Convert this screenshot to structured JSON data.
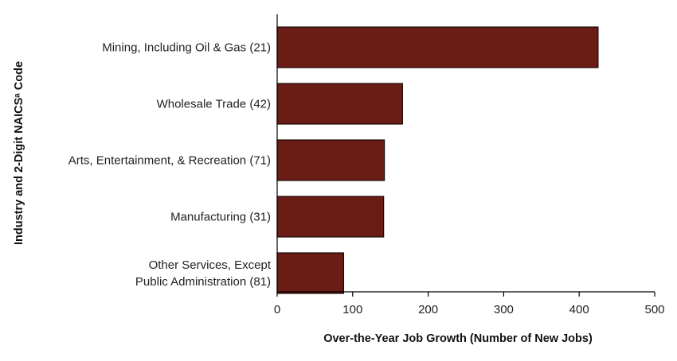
{
  "chart_data": {
    "type": "bar",
    "orientation": "horizontal",
    "categories": [
      [
        "Mining, Including Oil & Gas (21)"
      ],
      [
        "Wholesale Trade (42)"
      ],
      [
        "Arts, Entertainment, & Recreation (71)"
      ],
      [
        "Manufacturing (31)"
      ],
      [
        "Other Services, Except",
        "Public Administration (81)"
      ]
    ],
    "values": [
      425,
      166,
      142,
      141,
      88
    ],
    "xlabel": "Over-the-Year Job Growth (Number of New Jobs)",
    "ylabel": "Industry and 2-Digit NAICSᵃ Code",
    "xlim": [
      0,
      500
    ],
    "xticks": [
      0,
      100,
      200,
      300,
      400,
      500
    ],
    "bar_color": "#6b1c15",
    "bar_edge_color": "#1a0a08",
    "grid": false,
    "legend": "none"
  }
}
